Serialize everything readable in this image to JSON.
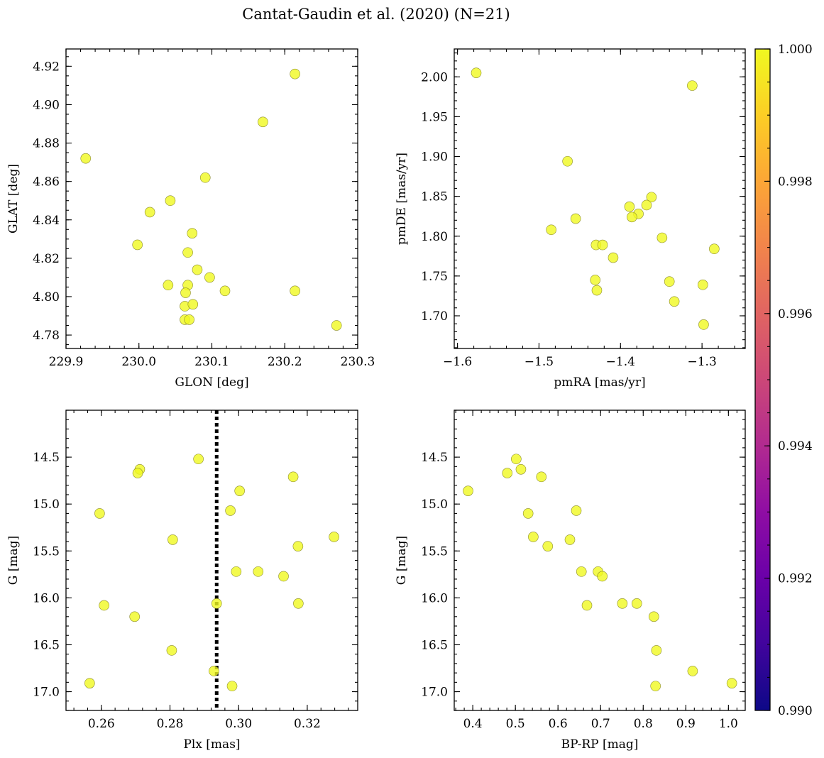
{
  "title": "Cantat-Gaudin et al. (2020) (N=21)",
  "colorbar": {
    "colormap": "plasma",
    "range": [
      0.99,
      1.0
    ],
    "ticks": [
      0.99,
      0.992,
      0.994,
      0.996,
      0.998,
      1.0
    ],
    "tick_labels": [
      "0.990",
      "0.992",
      "0.994",
      "0.996",
      "0.998",
      "1.000"
    ],
    "stops": [
      "#0d0887",
      "#41049d",
      "#6a00a8",
      "#8f0da4",
      "#b12a90",
      "#cc4778",
      "#e16462",
      "#f2844b",
      "#fca636",
      "#fcce25",
      "#f0f921"
    ],
    "point_color": "#f0f921"
  },
  "chart_data": [
    {
      "type": "scatter",
      "xlabel": "GLON [deg]",
      "ylabel": "GLAT [deg]",
      "xlim": [
        229.9,
        230.3
      ],
      "ylim": [
        4.773,
        4.929
      ],
      "xticks": [
        229.9,
        230.0,
        230.1,
        230.2,
        230.3
      ],
      "xtick_labels": [
        "229.9",
        "230.0",
        "230.1",
        "230.2",
        "230.3"
      ],
      "xminor": 0.02,
      "yticks": [
        4.78,
        4.8,
        4.82,
        4.84,
        4.86,
        4.88,
        4.9,
        4.92
      ],
      "ytick_labels": [
        "4.78",
        "4.80",
        "4.82",
        "4.84",
        "4.86",
        "4.88",
        "4.90",
        "4.92"
      ],
      "yminor": 0.005,
      "points": [
        [
          229.927,
          4.872
        ],
        [
          230.214,
          4.916
        ],
        [
          230.17,
          4.891
        ],
        [
          230.091,
          4.862
        ],
        [
          230.043,
          4.85
        ],
        [
          230.015,
          4.844
        ],
        [
          229.998,
          4.827
        ],
        [
          230.073,
          4.833
        ],
        [
          230.067,
          4.823
        ],
        [
          230.08,
          4.814
        ],
        [
          230.097,
          4.81
        ],
        [
          230.04,
          4.806
        ],
        [
          230.067,
          4.806
        ],
        [
          230.064,
          4.802
        ],
        [
          230.118,
          4.803
        ],
        [
          230.214,
          4.803
        ],
        [
          230.063,
          4.795
        ],
        [
          230.074,
          4.796
        ],
        [
          230.063,
          4.788
        ],
        [
          230.069,
          4.788
        ],
        [
          230.271,
          4.785
        ]
      ]
    },
    {
      "type": "scatter",
      "xlabel": "pmRA [mas/yr]",
      "ylabel": "pmDE [mas/yr]",
      "xlim": [
        -1.604,
        -1.247
      ],
      "ylim": [
        1.659,
        2.035
      ],
      "xticks": [
        -1.6,
        -1.5,
        -1.4,
        -1.3
      ],
      "xtick_labels": [
        "−1.6",
        "−1.5",
        "−1.4",
        "−1.3"
      ],
      "xminor": 0.02,
      "yticks": [
        1.7,
        1.75,
        1.8,
        1.85,
        1.9,
        1.95,
        2.0
      ],
      "ytick_labels": [
        "1.70",
        "1.75",
        "1.80",
        "1.85",
        "1.90",
        "1.95",
        "2.00"
      ],
      "yminor": 0.01,
      "points": [
        [
          -1.577,
          2.005
        ],
        [
          -1.312,
          1.989
        ],
        [
          -1.465,
          1.894
        ],
        [
          -1.362,
          1.849
        ],
        [
          -1.455,
          1.822
        ],
        [
          -1.389,
          1.837
        ],
        [
          -1.368,
          1.839
        ],
        [
          -1.378,
          1.828
        ],
        [
          -1.386,
          1.824
        ],
        [
          -1.485,
          1.808
        ],
        [
          -1.349,
          1.798
        ],
        [
          -1.43,
          1.789
        ],
        [
          -1.422,
          1.789
        ],
        [
          -1.409,
          1.773
        ],
        [
          -1.285,
          1.784
        ],
        [
          -1.431,
          1.745
        ],
        [
          -1.34,
          1.743
        ],
        [
          -1.299,
          1.739
        ],
        [
          -1.429,
          1.732
        ],
        [
          -1.334,
          1.718
        ],
        [
          -1.298,
          1.689
        ]
      ]
    },
    {
      "type": "scatter",
      "xlabel": "Plx [mas]",
      "ylabel": "G [mag]",
      "xlim": [
        0.2497,
        0.3347
      ],
      "ylim": [
        17.2,
        14.0
      ],
      "y_inverted": true,
      "xticks": [
        0.26,
        0.28,
        0.3,
        0.32
      ],
      "xtick_labels": [
        "0.26",
        "0.28",
        "0.30",
        "0.32"
      ],
      "xminor": 0.004,
      "yticks": [
        14.5,
        15.0,
        15.5,
        16.0,
        16.5,
        17.0
      ],
      "ytick_labels": [
        "14.5",
        "15.0",
        "15.5",
        "16.0",
        "16.5",
        "17.0"
      ],
      "yminor": 0.1,
      "vline": 0.2936,
      "points": [
        [
          0.2883,
          14.52
        ],
        [
          0.2712,
          14.63
        ],
        [
          0.2706,
          14.67
        ],
        [
          0.3159,
          14.71
        ],
        [
          0.3003,
          14.86
        ],
        [
          0.2595,
          15.1
        ],
        [
          0.2976,
          15.07
        ],
        [
          0.3278,
          15.35
        ],
        [
          0.2808,
          15.38
        ],
        [
          0.3173,
          15.45
        ],
        [
          0.2993,
          15.72
        ],
        [
          0.3057,
          15.72
        ],
        [
          0.3131,
          15.77
        ],
        [
          0.2608,
          16.08
        ],
        [
          0.2936,
          16.06
        ],
        [
          0.3174,
          16.06
        ],
        [
          0.2697,
          16.2
        ],
        [
          0.2805,
          16.56
        ],
        [
          0.2928,
          16.78
        ],
        [
          0.2566,
          16.91
        ],
        [
          0.2981,
          16.94
        ]
      ]
    },
    {
      "type": "scatter",
      "xlabel": "BP-RP [mag]",
      "ylabel": "G [mag]",
      "xlim": [
        0.3565,
        1.0394
      ],
      "ylim": [
        17.2,
        14.0
      ],
      "y_inverted": true,
      "xticks": [
        0.4,
        0.5,
        0.6,
        0.7,
        0.8,
        0.9,
        1.0
      ],
      "xtick_labels": [
        "0.4",
        "0.5",
        "0.6",
        "0.7",
        "0.8",
        "0.9",
        "1.0"
      ],
      "xminor": 0.02,
      "yticks": [
        14.5,
        15.0,
        15.5,
        16.0,
        16.5,
        17.0
      ],
      "ytick_labels": [
        "14.5",
        "15.0",
        "15.5",
        "16.0",
        "16.5",
        "17.0"
      ],
      "yminor": 0.1,
      "points": [
        [
          0.502,
          14.52
        ],
        [
          0.513,
          14.63
        ],
        [
          0.481,
          14.67
        ],
        [
          0.561,
          14.71
        ],
        [
          0.389,
          14.86
        ],
        [
          0.53,
          15.1
        ],
        [
          0.643,
          15.07
        ],
        [
          0.542,
          15.35
        ],
        [
          0.628,
          15.38
        ],
        [
          0.576,
          15.45
        ],
        [
          0.655,
          15.72
        ],
        [
          0.694,
          15.72
        ],
        [
          0.704,
          15.77
        ],
        [
          0.668,
          16.08
        ],
        [
          0.751,
          16.06
        ],
        [
          0.785,
          16.06
        ],
        [
          0.825,
          16.2
        ],
        [
          0.831,
          16.56
        ],
        [
          0.916,
          16.78
        ],
        [
          1.008,
          16.91
        ],
        [
          0.829,
          16.94
        ]
      ]
    }
  ]
}
